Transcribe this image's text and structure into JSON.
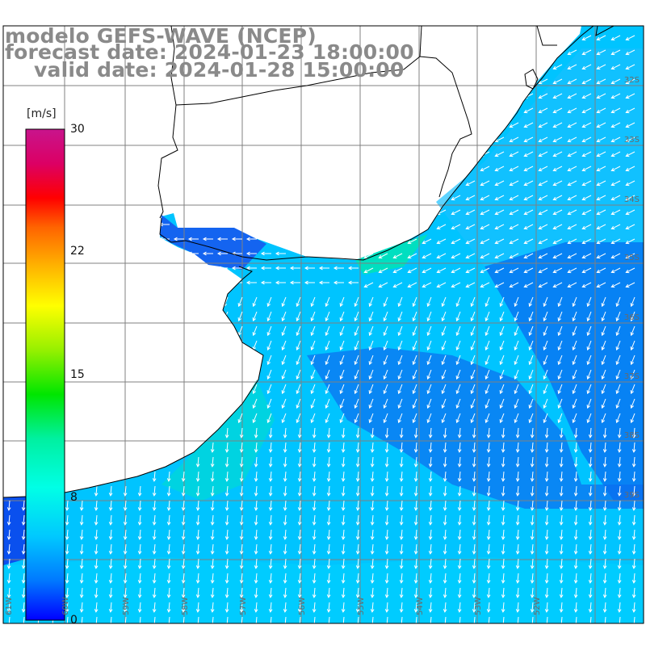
{
  "title": {
    "model": "modelo GEFS-WAVE (NCEP)",
    "forecast": "forecast date: 2024-01-23 18:00:00",
    "valid": "valid date: 2024-01-28 15:00:00"
  },
  "colorbar": {
    "unit": "[m/s]",
    "ticks": [
      "30",
      "22",
      "15",
      "8",
      "0"
    ],
    "colors": [
      "#0000ff",
      "#0078ff",
      "#00c8ff",
      "#00ffe6",
      "#00f0a0",
      "#00e600",
      "#96f000",
      "#ffff00",
      "#ffb400",
      "#ff6400",
      "#ff0000",
      "#dc0064",
      "#c8148c"
    ]
  },
  "grid": {
    "lon_labels": [
      "61W",
      "60W",
      "59W",
      "58W",
      "57W",
      "56W",
      "55W",
      "54W",
      "53W",
      "52W"
    ],
    "lat_labels": [
      "32S",
      "33S",
      "34S",
      "35S",
      "36S",
      "37S",
      "38S",
      "39S"
    ]
  },
  "colors": {
    "land": "#ffffff",
    "sea_base": "#00c8ff",
    "sea_dark": "#0a6af0",
    "sea_green": "#00e6b0",
    "arrow": "#ffffff",
    "coast": "#000000",
    "gridline": "#808080"
  }
}
